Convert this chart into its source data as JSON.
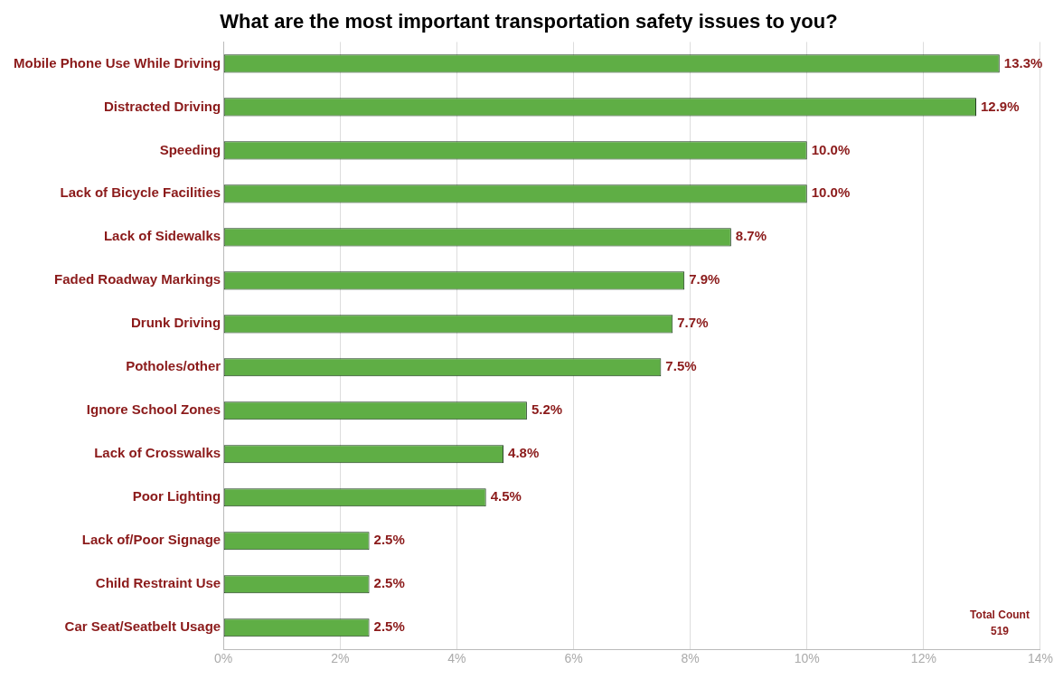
{
  "chart_data": {
    "type": "bar",
    "orientation": "horizontal",
    "title": "What are the most important transportation safety issues to you?",
    "categories": [
      "Mobile Phone Use While Driving",
      "Distracted Driving",
      "Speeding",
      "Lack of Bicycle Facilities",
      "Lack of Sidewalks",
      "Faded Roadway Markings",
      "Drunk Driving",
      "Potholes/other",
      "Ignore School Zones",
      "Lack of Crosswalks",
      "Poor Lighting",
      "Lack of/Poor Signage",
      "Child Restraint Use",
      "Car Seat/Seatbelt Usage"
    ],
    "values": [
      13.3,
      12.9,
      10.0,
      10.0,
      8.7,
      7.9,
      7.7,
      7.5,
      5.2,
      4.8,
      4.5,
      2.5,
      2.5,
      2.5
    ],
    "value_labels": [
      "13.3%",
      "12.9%",
      "10.0%",
      "10.0%",
      "8.7%",
      "7.9%",
      "7.7%",
      "7.5%",
      "5.2%",
      "4.8%",
      "4.5%",
      "2.5%",
      "2.5%",
      "2.5%"
    ],
    "color": "#5fae45",
    "xlim": [
      0,
      14
    ],
    "xticks": [
      {
        "value": 0,
        "label": "0%"
      },
      {
        "value": 2,
        "label": "2%"
      },
      {
        "value": 4,
        "label": "4%"
      },
      {
        "value": 6,
        "label": "6%"
      },
      {
        "value": 8,
        "label": "8%"
      },
      {
        "value": 10,
        "label": "10%"
      },
      {
        "value": 12,
        "label": "12%"
      },
      {
        "value": 14,
        "label": "14%"
      }
    ],
    "grid": "x",
    "annotations": [
      "Total Count",
      "519"
    ]
  }
}
